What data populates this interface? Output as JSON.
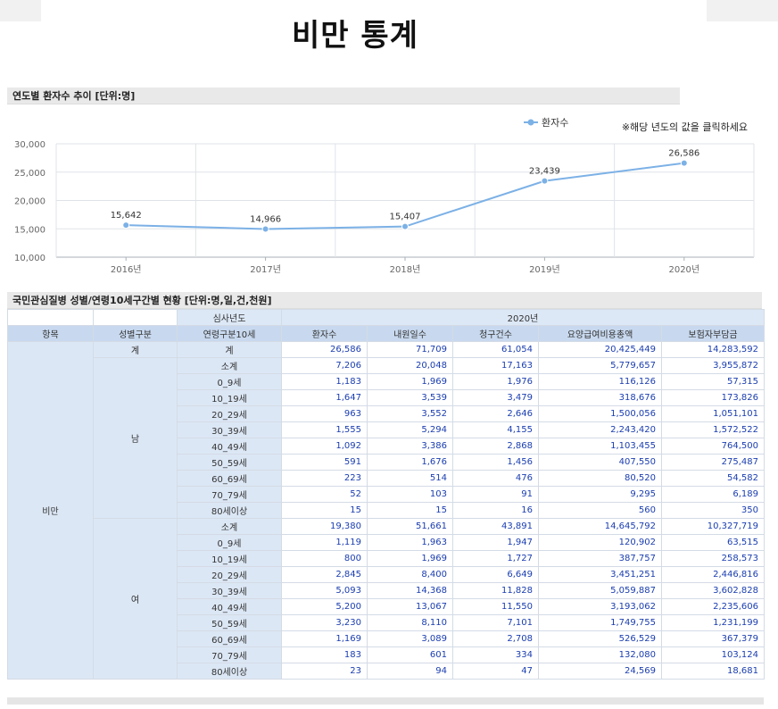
{
  "page": {
    "title": "비만 통계"
  },
  "chart_section": {
    "header": "연도별 환자수 추이 [단위:명]"
  },
  "chart_data": {
    "type": "line",
    "categories": [
      "2016년",
      "2017년",
      "2018년",
      "2019년",
      "2020년"
    ],
    "series": [
      {
        "name": "환자수",
        "values": [
          15642,
          14966,
          15407,
          23439,
          26586
        ],
        "labels": [
          "15,642",
          "14,966",
          "15,407",
          "23,439",
          "26,586"
        ]
      }
    ],
    "ylim": [
      10000,
      30000
    ],
    "yticks": [
      "10,000",
      "15,000",
      "20,000",
      "25,000",
      "30,000"
    ],
    "grid": true,
    "legend": "top-right",
    "note": "※해당 년도의 값을 클릭하세요",
    "color": "#7cb1e6"
  },
  "table_section": {
    "header": "국민관심질병 성별/연령10세구간별 현황 [단위:명,일,건,천원]",
    "year_dim_label": "심사년도",
    "year": "2020년",
    "headers": [
      "항목",
      "성별구분",
      "연령구분10세",
      "환자수",
      "내원일수",
      "청구건수",
      "요양급여비용총액",
      "보험자부담금"
    ],
    "item": "비만",
    "total_label": "계",
    "total": [
      "26,586",
      "71,709",
      "61,054",
      "20,425,449",
      "14,283,592"
    ],
    "groups": [
      {
        "gender": "남",
        "rows": [
          {
            "age": "소계",
            "values": [
              "7,206",
              "20,048",
              "17,163",
              "5,779,657",
              "3,955,872"
            ]
          },
          {
            "age": "0_9세",
            "values": [
              "1,183",
              "1,969",
              "1,976",
              "116,126",
              "57,315"
            ]
          },
          {
            "age": "10_19세",
            "values": [
              "1,647",
              "3,539",
              "3,479",
              "318,676",
              "173,826"
            ]
          },
          {
            "age": "20_29세",
            "values": [
              "963",
              "3,552",
              "2,646",
              "1,500,056",
              "1,051,101"
            ]
          },
          {
            "age": "30_39세",
            "values": [
              "1,555",
              "5,294",
              "4,155",
              "2,243,420",
              "1,572,522"
            ]
          },
          {
            "age": "40_49세",
            "values": [
              "1,092",
              "3,386",
              "2,868",
              "1,103,455",
              "764,500"
            ]
          },
          {
            "age": "50_59세",
            "values": [
              "591",
              "1,676",
              "1,456",
              "407,550",
              "275,487"
            ]
          },
          {
            "age": "60_69세",
            "values": [
              "223",
              "514",
              "476",
              "80,520",
              "54,582"
            ]
          },
          {
            "age": "70_79세",
            "values": [
              "52",
              "103",
              "91",
              "9,295",
              "6,189"
            ]
          },
          {
            "age": "80세이상",
            "values": [
              "15",
              "15",
              "16",
              "560",
              "350"
            ]
          }
        ]
      },
      {
        "gender": "여",
        "rows": [
          {
            "age": "소계",
            "values": [
              "19,380",
              "51,661",
              "43,891",
              "14,645,792",
              "10,327,719"
            ]
          },
          {
            "age": "0_9세",
            "values": [
              "1,119",
              "1,963",
              "1,947",
              "120,902",
              "63,515"
            ]
          },
          {
            "age": "10_19세",
            "values": [
              "800",
              "1,969",
              "1,727",
              "387,757",
              "258,573"
            ]
          },
          {
            "age": "20_29세",
            "values": [
              "2,845",
              "8,400",
              "6,649",
              "3,451,251",
              "2,446,816"
            ]
          },
          {
            "age": "30_39세",
            "values": [
              "5,093",
              "14,368",
              "11,828",
              "5,059,887",
              "3,602,828"
            ]
          },
          {
            "age": "40_49세",
            "values": [
              "5,200",
              "13,067",
              "11,550",
              "3,193,062",
              "2,235,606"
            ]
          },
          {
            "age": "50_59세",
            "values": [
              "3,230",
              "8,110",
              "7,101",
              "1,749,755",
              "1,231,199"
            ]
          },
          {
            "age": "60_69세",
            "values": [
              "1,169",
              "3,089",
              "2,708",
              "526,529",
              "367,379"
            ]
          },
          {
            "age": "70_79세",
            "values": [
              "183",
              "601",
              "334",
              "132,080",
              "103,124"
            ]
          },
          {
            "age": "80세이상",
            "values": [
              "23",
              "94",
              "47",
              "24,569",
              "18,681"
            ]
          }
        ]
      }
    ]
  }
}
